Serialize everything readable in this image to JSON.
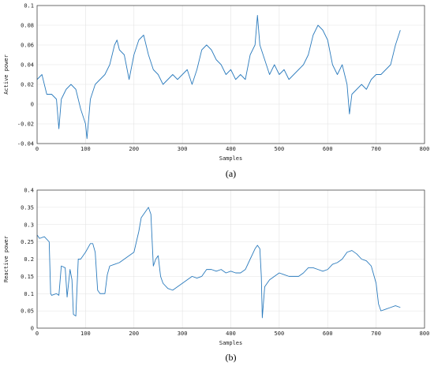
{
  "chart_data": [
    {
      "type": "line",
      "panel_label": "(a)",
      "xlabel": "Samples",
      "ylabel": "Active power",
      "xlim": [
        0,
        800
      ],
      "ylim": [
        -0.04,
        0.1
      ],
      "xticks": [
        0,
        100,
        200,
        300,
        400,
        500,
        600,
        700,
        800
      ],
      "yticks": [
        -0.04,
        -0.02,
        0,
        0.02,
        0.04,
        0.06,
        0.08,
        0.1
      ],
      "ytick_labels": [
        "-0.04",
        "-0.02",
        "0",
        "0.02",
        "0.04",
        "0.06",
        "0.08",
        "0.1"
      ],
      "grid": true,
      "series_color": "#2b7bbd",
      "x": [
        0,
        10,
        20,
        30,
        40,
        45,
        50,
        60,
        70,
        80,
        90,
        100,
        103,
        110,
        120,
        130,
        140,
        150,
        160,
        165,
        170,
        180,
        190,
        200,
        210,
        220,
        230,
        240,
        250,
        260,
        270,
        280,
        290,
        300,
        310,
        320,
        330,
        340,
        350,
        360,
        370,
        380,
        390,
        400,
        410,
        420,
        430,
        440,
        450,
        455,
        460,
        470,
        480,
        490,
        500,
        510,
        520,
        530,
        540,
        550,
        560,
        570,
        580,
        590,
        600,
        610,
        620,
        630,
        640,
        645,
        650,
        660,
        670,
        680,
        690,
        700,
        710,
        720,
        730,
        740,
        750
      ],
      "y": [
        0.025,
        0.03,
        0.01,
        0.01,
        0.005,
        -0.025,
        0.005,
        0.015,
        0.02,
        0.015,
        -0.005,
        -0.02,
        -0.035,
        0.005,
        0.02,
        0.025,
        0.03,
        0.04,
        0.06,
        0.065,
        0.055,
        0.05,
        0.025,
        0.05,
        0.065,
        0.07,
        0.05,
        0.035,
        0.03,
        0.02,
        0.025,
        0.03,
        0.025,
        0.03,
        0.035,
        0.02,
        0.035,
        0.055,
        0.06,
        0.055,
        0.045,
        0.04,
        0.03,
        0.035,
        0.025,
        0.03,
        0.025,
        0.05,
        0.06,
        0.09,
        0.06,
        0.045,
        0.03,
        0.04,
        0.03,
        0.035,
        0.025,
        0.03,
        0.035,
        0.04,
        0.05,
        0.07,
        0.08,
        0.075,
        0.065,
        0.04,
        0.03,
        0.04,
        0.02,
        -0.01,
        0.01,
        0.015,
        0.02,
        0.015,
        0.025,
        0.03,
        0.03,
        0.035,
        0.04,
        0.06,
        0.075
      ]
    },
    {
      "type": "line",
      "panel_label": "(b)",
      "xlabel": "Samples",
      "ylabel": "Reactive power",
      "xlim": [
        0,
        800
      ],
      "ylim": [
        0,
        0.4
      ],
      "xticks": [
        0,
        100,
        200,
        300,
        400,
        500,
        600,
        700,
        800
      ],
      "yticks": [
        0,
        0.05,
        0.1,
        0.15,
        0.2,
        0.25,
        0.3,
        0.35,
        0.4
      ],
      "ytick_labels": [
        "0",
        "0.05",
        "0.1",
        "0.15",
        "0.2",
        "0.25",
        "0.3",
        "0.35",
        "0.4"
      ],
      "grid": true,
      "series_color": "#2b7bbd",
      "x": [
        0,
        5,
        15,
        25,
        28,
        30,
        40,
        45,
        50,
        58,
        62,
        68,
        72,
        75,
        80,
        85,
        90,
        100,
        110,
        115,
        120,
        125,
        130,
        140,
        145,
        150,
        160,
        170,
        180,
        190,
        200,
        210,
        215,
        220,
        230,
        235,
        240,
        245,
        250,
        255,
        260,
        270,
        280,
        290,
        300,
        310,
        320,
        330,
        340,
        350,
        360,
        370,
        380,
        390,
        400,
        410,
        420,
        430,
        440,
        450,
        455,
        460,
        463,
        465,
        470,
        480,
        490,
        500,
        510,
        520,
        530,
        540,
        550,
        560,
        570,
        580,
        590,
        600,
        610,
        620,
        630,
        640,
        650,
        660,
        670,
        680,
        690,
        700,
        705,
        710,
        720,
        730,
        740,
        750
      ],
      "y": [
        0.27,
        0.26,
        0.265,
        0.25,
        0.1,
        0.095,
        0.1,
        0.095,
        0.18,
        0.175,
        0.09,
        0.17,
        0.14,
        0.04,
        0.035,
        0.2,
        0.2,
        0.22,
        0.245,
        0.245,
        0.22,
        0.11,
        0.1,
        0.1,
        0.155,
        0.18,
        0.185,
        0.19,
        0.2,
        0.21,
        0.22,
        0.28,
        0.32,
        0.33,
        0.35,
        0.33,
        0.18,
        0.2,
        0.21,
        0.15,
        0.13,
        0.115,
        0.11,
        0.12,
        0.13,
        0.14,
        0.15,
        0.145,
        0.15,
        0.17,
        0.17,
        0.165,
        0.17,
        0.16,
        0.165,
        0.16,
        0.16,
        0.17,
        0.2,
        0.23,
        0.24,
        0.23,
        0.15,
        0.03,
        0.12,
        0.14,
        0.15,
        0.16,
        0.155,
        0.15,
        0.15,
        0.15,
        0.16,
        0.175,
        0.175,
        0.17,
        0.165,
        0.17,
        0.185,
        0.19,
        0.2,
        0.22,
        0.225,
        0.215,
        0.2,
        0.195,
        0.18,
        0.13,
        0.07,
        0.05,
        0.055,
        0.06,
        0.065,
        0.06
      ]
    }
  ]
}
